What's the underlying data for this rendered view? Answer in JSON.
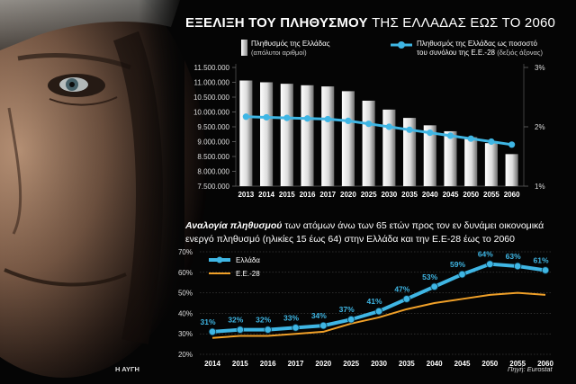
{
  "header": {
    "title_bold": "ΕΞΕΛΙΞΗ ΤΟΥ ΠΛΗΘΥΣΜΟΥ",
    "title_rest": "ΤΗΣ ΕΛΛΑΔΑΣ ΕΩΣ ΤΟ 2060"
  },
  "colors": {
    "line_cyan": "#3fb6e4",
    "line_orange": "#f0a028",
    "bar_light": "#ffffff",
    "bar_dark": "#7a7a7a"
  },
  "chart_data": [
    {
      "type": "bar",
      "legend": {
        "bars_line1": "Πληθυσμός της Ελλάδας",
        "bars_line2": "(απόλυτοι αριθμοί)",
        "line_line1": "Πληθυσμός της Ελλάδας ως ποσοστό",
        "line_line2": "του συνόλου της Ε.Ε.-28",
        "line_line2_suffix": "(δεξιός άξονας)"
      },
      "categories": [
        "2013",
        "2014",
        "2015",
        "2016",
        "2017",
        "2020",
        "2025",
        "2030",
        "2035",
        "2040",
        "2045",
        "2050",
        "2055",
        "2060"
      ],
      "series": [
        {
          "name": "Πληθυσμός της Ελλάδας",
          "axis": "left",
          "values": [
            11060000,
            11000000,
            10950000,
            10900000,
            10860000,
            10700000,
            10380000,
            10080000,
            9800000,
            9550000,
            9350000,
            9150000,
            8950000,
            8580000
          ]
        },
        {
          "name": "Πληθυσμός της Ελλάδας ως ποσοστό του συνόλου της Ε.Ε.-28",
          "axis": "right",
          "values": [
            2.17,
            2.16,
            2.15,
            2.14,
            2.13,
            2.1,
            2.05,
            2.0,
            1.95,
            1.9,
            1.85,
            1.8,
            1.75,
            1.7
          ]
        }
      ],
      "ylim_left": [
        7500000,
        11500000
      ],
      "ylim_right": [
        1,
        3
      ],
      "yticks_left": [
        "11.500.000",
        "11.000.000",
        "10.500.000",
        "10.000.000",
        "9.500.000",
        "9.000.000",
        "8.500.000",
        "8.000.000",
        "7.500.000"
      ],
      "yticks_right": [
        "3%",
        "2%",
        "1%"
      ]
    },
    {
      "type": "line",
      "title_bold": "Αναλογία πληθυσμού",
      "title_rest": "των ατόμων άνω των 65 ετών προς τον εν δυνάμει οικονομικά ενεργό πληθυσμό (ηλικίες 15 έως 64) στην Ελλάδα και την Ε.Ε-28 έως το 2060",
      "categories": [
        "2014",
        "2015",
        "2016",
        "2017",
        "2020",
        "2025",
        "2030",
        "2035",
        "2040",
        "2045",
        "2050",
        "2055",
        "2060"
      ],
      "series": [
        {
          "name": "Ελλάδα",
          "values": [
            31,
            32,
            32,
            33,
            34,
            37,
            41,
            47,
            53,
            59,
            64,
            63,
            61
          ],
          "labels": [
            "31%",
            "32%",
            "32%",
            "33%",
            "34%",
            "37%",
            "41%",
            "47%",
            "53%",
            "59%",
            "64%",
            "63%",
            "61%"
          ]
        },
        {
          "name": "Ε.Ε.-28",
          "values": [
            28,
            29,
            29,
            30,
            31,
            35,
            38,
            42,
            45,
            47,
            49,
            50,
            49
          ]
        }
      ],
      "ylim": [
        20,
        70
      ],
      "yticks": [
        "70%",
        "60%",
        "50%",
        "40%",
        "30%",
        "20%"
      ]
    }
  ],
  "footer": {
    "left": "Η ΑΥΓΗ",
    "right": "Πηγή: Eurostat"
  }
}
